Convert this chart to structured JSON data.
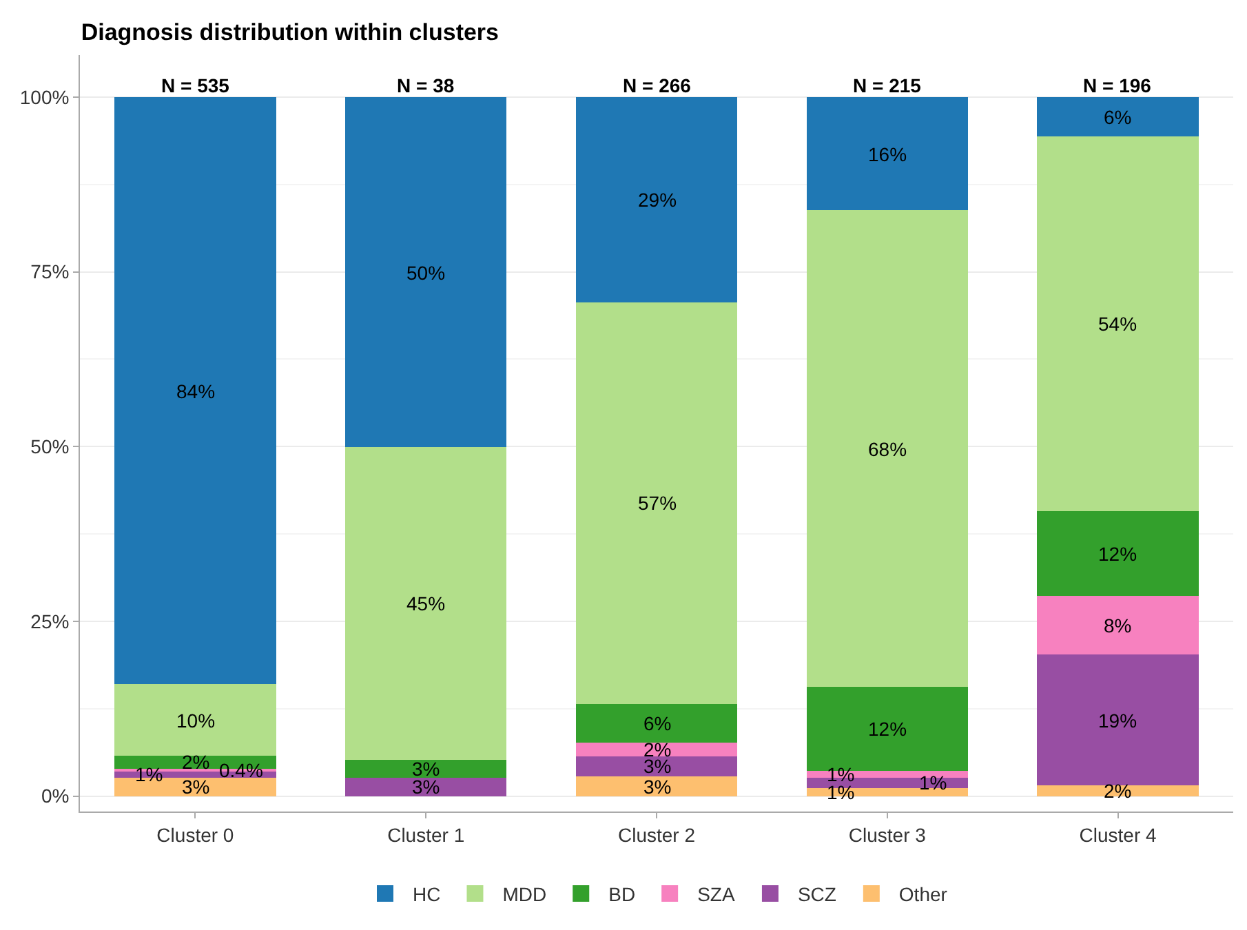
{
  "chart_data": {
    "type": "bar",
    "stacked": true,
    "title": "Diagnosis distribution within clusters",
    "categories": [
      "Cluster 0",
      "Cluster 1",
      "Cluster 2",
      "Cluster 3",
      "Cluster 4"
    ],
    "series": [
      {
        "name": "Other",
        "color": "#fdbf6f",
        "values": [
          2.6,
          0,
          2.8,
          1.2,
          1.5
        ],
        "value_labels": [
          "3%",
          null,
          "3%",
          "1%",
          "2%"
        ]
      },
      {
        "name": "SCZ",
        "color": "#984ea3",
        "values": [
          0.9,
          2.6,
          2.9,
          1.4,
          18.8
        ],
        "value_labels": [
          "1%",
          "3%",
          "3%",
          "1%",
          "19%"
        ]
      },
      {
        "name": "SZA",
        "color": "#f781bf",
        "values": [
          0.4,
          0,
          2.0,
          1.0,
          8.3
        ],
        "value_labels": [
          "0.4%",
          null,
          "2%",
          "1%",
          "8%"
        ]
      },
      {
        "name": "BD",
        "color": "#33a02c",
        "values": [
          1.9,
          2.6,
          5.5,
          12.0,
          12.2
        ],
        "value_labels": [
          "2%",
          "3%",
          "6%",
          "12%",
          "12%"
        ]
      },
      {
        "name": "MDD",
        "color": "#b2df8a",
        "values": [
          10.2,
          44.7,
          57.4,
          68.2,
          53.6
        ],
        "value_labels": [
          "10%",
          "45%",
          "57%",
          "68%",
          "54%"
        ]
      },
      {
        "name": "HC",
        "color": "#1f78b4",
        "values": [
          84.0,
          50.1,
          29.4,
          16.2,
          5.6
        ],
        "value_labels": [
          "84%",
          "50%",
          "29%",
          "16%",
          "6%"
        ]
      }
    ],
    "ylim": [
      0,
      100
    ],
    "yticks": [
      {
        "value": 0,
        "label": "0%"
      },
      {
        "value": 25,
        "label": "25%"
      },
      {
        "value": 50,
        "label": "50%"
      },
      {
        "value": 75,
        "label": "75%"
      },
      {
        "value": 100,
        "label": "100%"
      }
    ],
    "grid": "y",
    "legend": "bottom",
    "annotations": [
      {
        "text": "N = 535",
        "x": "Cluster 0",
        "y": 100
      },
      {
        "text": "N = 38",
        "x": "Cluster 1",
        "y": 100
      },
      {
        "text": "N = 266",
        "x": "Cluster 2",
        "y": 100
      },
      {
        "text": "N = 215",
        "x": "Cluster 3",
        "y": 100
      },
      {
        "text": "N = 196",
        "x": "Cluster 4",
        "y": 100
      }
    ]
  }
}
